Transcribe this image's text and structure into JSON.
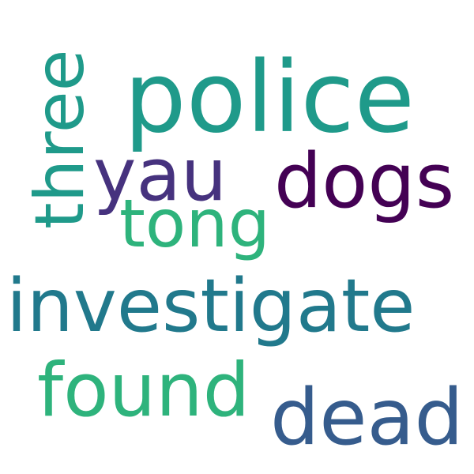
{
  "words": [
    {
      "text": "police",
      "color": "#1f9a8a"
    },
    {
      "text": "three",
      "color": "#1f9a8a"
    },
    {
      "text": "yau",
      "color": "#46327e"
    },
    {
      "text": "dogs",
      "color": "#440154"
    },
    {
      "text": "tong",
      "color": "#2eb37c"
    },
    {
      "text": "investigate",
      "color": "#21798c"
    },
    {
      "text": "found",
      "color": "#2eb37c"
    },
    {
      "text": "dead",
      "color": "#365c8d"
    }
  ]
}
